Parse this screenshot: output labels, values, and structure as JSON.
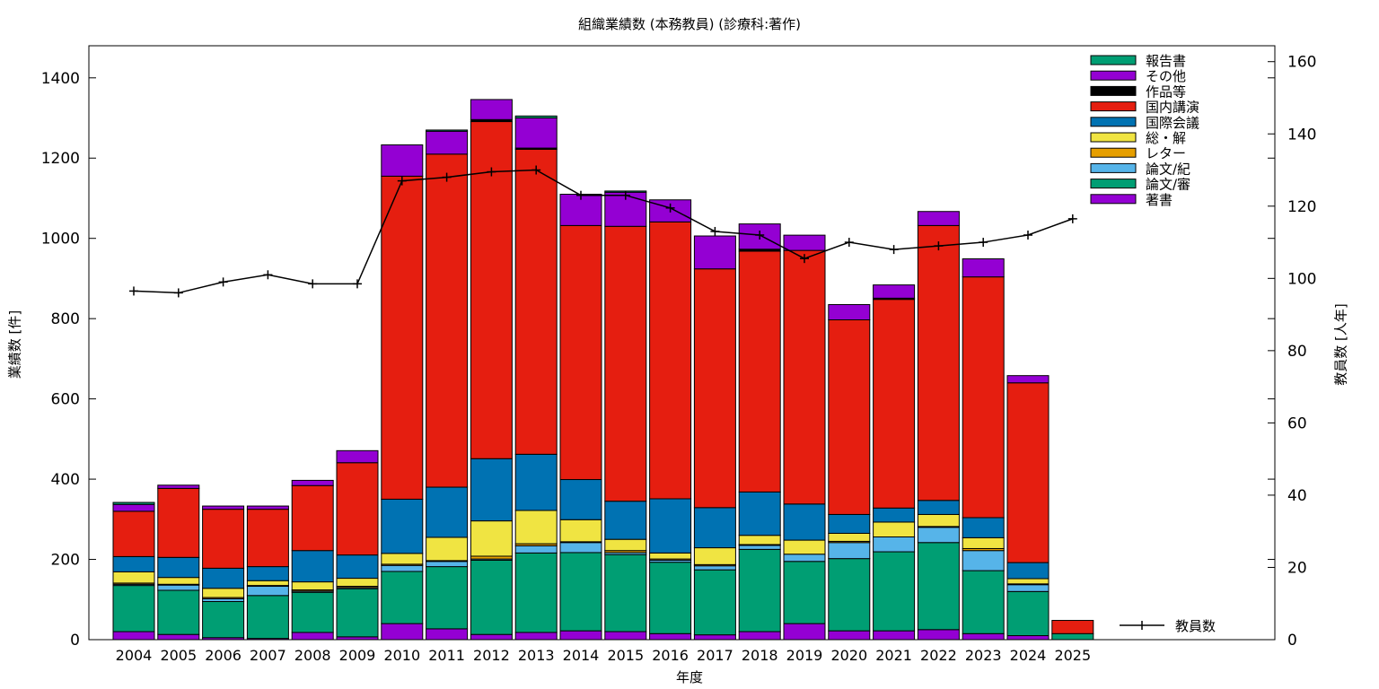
{
  "chart_data": {
    "type": "bar",
    "stacked": true,
    "title": "組織業績数 (本務教員) (診療科:著作)",
    "xlabel": "年度",
    "ylabel": "業績数 [件]",
    "y2label": "教員数 [人年]",
    "ylim": [
      0,
      1480
    ],
    "y2lim": [
      0,
      164.4
    ],
    "yticks": [
      0,
      200,
      400,
      600,
      800,
      1000,
      1200,
      1400
    ],
    "y2ticks": [
      0,
      20,
      40,
      60,
      80,
      100,
      120,
      140,
      160
    ],
    "grid": false,
    "legend_position": "top-right",
    "categories": [
      "2004",
      "2005",
      "2006",
      "2007",
      "2008",
      "2009",
      "2010",
      "2011",
      "2012",
      "2013",
      "2014",
      "2015",
      "2016",
      "2017",
      "2018",
      "2019",
      "2020",
      "2021",
      "2022",
      "2023",
      "2024",
      "2025"
    ],
    "series": [
      {
        "name": "著書",
        "color": "#9400d3",
        "values": [
          20,
          13,
          5,
          3,
          18,
          7,
          40,
          27,
          13,
          18,
          22,
          20,
          15,
          12,
          20,
          40,
          22,
          22,
          25,
          15,
          10,
          0
        ]
      },
      {
        "name": "論文/審",
        "color": "#009e73",
        "values": [
          115,
          110,
          90,
          107,
          100,
          120,
          130,
          155,
          185,
          198,
          195,
          192,
          178,
          162,
          205,
          155,
          180,
          197,
          217,
          157,
          110,
          15
        ]
      },
      {
        "name": "論文/紀",
        "color": "#56b4e9",
        "values": [
          3,
          13,
          7,
          23,
          3,
          3,
          15,
          13,
          3,
          18,
          25,
          5,
          5,
          10,
          10,
          18,
          40,
          37,
          38,
          50,
          17,
          0
        ]
      },
      {
        "name": "レター",
        "color": "#e69f00",
        "values": [
          3,
          2,
          3,
          2,
          3,
          3,
          3,
          2,
          7,
          5,
          2,
          5,
          3,
          3,
          2,
          0,
          3,
          0,
          2,
          5,
          2,
          0
        ]
      },
      {
        "name": "総・解",
        "color": "#f0e442",
        "values": [
          28,
          17,
          23,
          12,
          20,
          20,
          27,
          58,
          88,
          83,
          55,
          28,
          15,
          42,
          23,
          35,
          20,
          37,
          30,
          27,
          13,
          0
        ]
      },
      {
        "name": "国際会議",
        "color": "#0072b2",
        "values": [
          38,
          50,
          50,
          35,
          78,
          58,
          135,
          125,
          155,
          140,
          100,
          95,
          135,
          100,
          108,
          90,
          47,
          35,
          35,
          50,
          40,
          0
        ]
      },
      {
        "name": "国内講演",
        "color": "#e51e10",
        "values": [
          113,
          172,
          147,
          143,
          162,
          230,
          805,
          830,
          840,
          760,
          633,
          685,
          690,
          595,
          600,
          632,
          485,
          520,
          685,
          600,
          448,
          33
        ]
      },
      {
        "name": "作品等",
        "color": "#000000",
        "values": [
          0,
          0,
          0,
          0,
          0,
          0,
          0,
          0,
          5,
          3,
          0,
          0,
          0,
          0,
          5,
          0,
          0,
          3,
          0,
          0,
          0,
          0
        ]
      },
      {
        "name": "その他",
        "color": "#9400d3",
        "values": [
          17,
          8,
          8,
          8,
          13,
          30,
          78,
          57,
          50,
          75,
          78,
          85,
          55,
          82,
          63,
          38,
          38,
          33,
          35,
          45,
          18,
          0
        ]
      },
      {
        "name": "報告書",
        "color": "#009e73",
        "values": [
          5,
          0,
          0,
          0,
          0,
          0,
          0,
          3,
          0,
          5,
          0,
          3,
          0,
          0,
          0,
          0,
          0,
          0,
          0,
          0,
          0,
          0
        ]
      }
    ],
    "line": {
      "name": "教員数",
      "color": "#000000",
      "values": [
        96.5,
        96.0,
        99.0,
        101.0,
        98.5,
        98.5,
        127.0,
        128.0,
        129.5,
        130.0,
        123.0,
        123.0,
        119.5,
        113.0,
        112.0,
        105.5,
        110.0,
        108.0,
        109.0,
        110.0,
        112.0,
        116.5
      ]
    }
  }
}
